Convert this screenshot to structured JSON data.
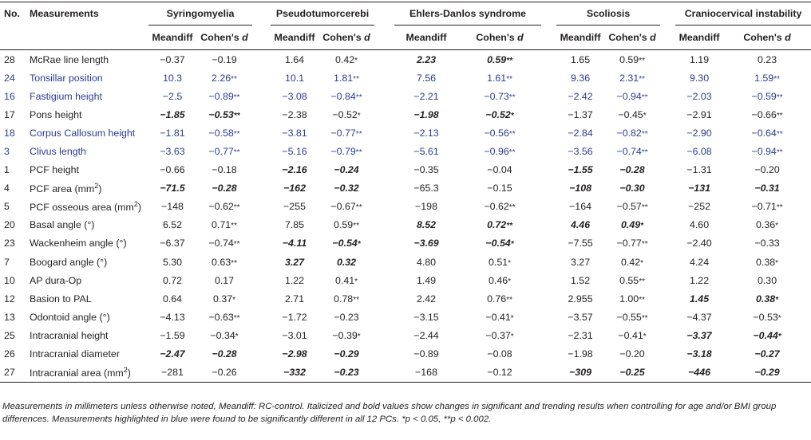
{
  "header": {
    "no": "No.",
    "measurements": "Measurements",
    "groups": [
      "Syringomyelia",
      "Pseudotumorcerebi",
      "Ehlers-Danlos syndrome",
      "Scoliosis",
      "Craniocervical instability"
    ],
    "meandiff": "Meandiff",
    "cohens": "Cohen's",
    "d": "d"
  },
  "rows": [
    {
      "no": "28",
      "label": "McRae line length",
      "sup": "",
      "blue": false,
      "cells": [
        {
          "v": "−0.37",
          "s": "",
          "b": false
        },
        {
          "v": "−0.19",
          "s": "",
          "b": false
        },
        {
          "v": "1.64",
          "s": "",
          "b": false
        },
        {
          "v": "0.42",
          "s": "*",
          "b": false
        },
        {
          "v": "2.23",
          "s": "",
          "b": true
        },
        {
          "v": "0.59",
          "s": "**",
          "b": true
        },
        {
          "v": "1.65",
          "s": "",
          "b": false
        },
        {
          "v": "0.59",
          "s": "**",
          "b": false
        },
        {
          "v": "1.19",
          "s": "",
          "b": false
        },
        {
          "v": "0.23",
          "s": "",
          "b": false
        }
      ]
    },
    {
      "no": "24",
      "label": "Tonsillar position",
      "sup": "",
      "blue": true,
      "cells": [
        {
          "v": "10.3",
          "s": "",
          "b": false
        },
        {
          "v": "2.26",
          "s": "**",
          "b": false
        },
        {
          "v": "10.1",
          "s": "",
          "b": false
        },
        {
          "v": "1.81",
          "s": "**",
          "b": false
        },
        {
          "v": "7.56",
          "s": "",
          "b": false
        },
        {
          "v": "1.61",
          "s": "**",
          "b": false
        },
        {
          "v": "9.36",
          "s": "",
          "b": false
        },
        {
          "v": "2.31",
          "s": "**",
          "b": false
        },
        {
          "v": "9.30",
          "s": "",
          "b": false
        },
        {
          "v": "1.59",
          "s": "**",
          "b": false
        }
      ]
    },
    {
      "no": "16",
      "label": "Fastigium height",
      "sup": "",
      "blue": true,
      "cells": [
        {
          "v": "−2.5",
          "s": "",
          "b": false
        },
        {
          "v": "−0.89",
          "s": "**",
          "b": false
        },
        {
          "v": "−3.08",
          "s": "",
          "b": false
        },
        {
          "v": "−0.84",
          "s": "**",
          "b": false
        },
        {
          "v": "−2.21",
          "s": "",
          "b": false
        },
        {
          "v": "−0.73",
          "s": "**",
          "b": false
        },
        {
          "v": "−2.42",
          "s": "",
          "b": false
        },
        {
          "v": "−0.94",
          "s": "**",
          "b": false
        },
        {
          "v": "−2.03",
          "s": "",
          "b": false
        },
        {
          "v": "−0.59",
          "s": "**",
          "b": false
        }
      ]
    },
    {
      "no": "17",
      "label": "Pons height",
      "sup": "",
      "blue": false,
      "cells": [
        {
          "v": "−1.85",
          "s": "",
          "b": true
        },
        {
          "v": "−0.53",
          "s": "**",
          "b": true
        },
        {
          "v": "−2.38",
          "s": "",
          "b": false
        },
        {
          "v": "−0.52",
          "s": "*",
          "b": false
        },
        {
          "v": "−1.98",
          "s": "",
          "b": true
        },
        {
          "v": "−0.52",
          "s": "*",
          "b": true
        },
        {
          "v": "−1.37",
          "s": "",
          "b": false
        },
        {
          "v": "−0.45",
          "s": "*",
          "b": false
        },
        {
          "v": "−2.91",
          "s": "",
          "b": false
        },
        {
          "v": "−0.66",
          "s": "**",
          "b": false
        }
      ]
    },
    {
      "no": "18",
      "label": "Corpus Callosum height",
      "sup": "",
      "blue": true,
      "cells": [
        {
          "v": "−1.81",
          "s": "",
          "b": false
        },
        {
          "v": "−0.58",
          "s": "**",
          "b": false
        },
        {
          "v": "−3.81",
          "s": "",
          "b": false
        },
        {
          "v": "−0.77",
          "s": "**",
          "b": false
        },
        {
          "v": "−2.13",
          "s": "",
          "b": false
        },
        {
          "v": "−0.56",
          "s": "**",
          "b": false
        },
        {
          "v": "−2.84",
          "s": "",
          "b": false
        },
        {
          "v": "−0.82",
          "s": "**",
          "b": false
        },
        {
          "v": "−2.90",
          "s": "",
          "b": false
        },
        {
          "v": "−0.64",
          "s": "**",
          "b": false
        }
      ]
    },
    {
      "no": "3",
      "label": "Clivus length",
      "sup": "",
      "blue": true,
      "cells": [
        {
          "v": "−3.63",
          "s": "",
          "b": false
        },
        {
          "v": "−0.77",
          "s": "**",
          "b": false
        },
        {
          "v": "−5.16",
          "s": "",
          "b": false
        },
        {
          "v": "−0.79",
          "s": "**",
          "b": false
        },
        {
          "v": "−5.61",
          "s": "",
          "b": false
        },
        {
          "v": "−0.96",
          "s": "**",
          "b": false
        },
        {
          "v": "−3.56",
          "s": "",
          "b": false
        },
        {
          "v": "−0.74",
          "s": "**",
          "b": false
        },
        {
          "v": "−6.08",
          "s": "",
          "b": false
        },
        {
          "v": "−0.94",
          "s": "**",
          "b": false
        }
      ]
    },
    {
      "no": "1",
      "label": "PCF height",
      "sup": "",
      "blue": false,
      "cells": [
        {
          "v": "−0.66",
          "s": "",
          "b": false
        },
        {
          "v": "−0.18",
          "s": "",
          "b": false
        },
        {
          "v": "−2.16",
          "s": "",
          "b": true
        },
        {
          "v": "−0.24",
          "s": "",
          "b": true
        },
        {
          "v": "−0.35",
          "s": "",
          "b": false
        },
        {
          "v": "−0.04",
          "s": "",
          "b": false
        },
        {
          "v": "−1.55",
          "s": "",
          "b": true
        },
        {
          "v": "−0.28",
          "s": "",
          "b": true
        },
        {
          "v": "−1.31",
          "s": "",
          "b": false
        },
        {
          "v": "−0.20",
          "s": "",
          "b": false
        }
      ]
    },
    {
      "no": "4",
      "label": "PCF area (mm",
      "sup": "2",
      "blue": false,
      "cells": [
        {
          "v": "−71.5",
          "s": "",
          "b": true
        },
        {
          "v": "−0.28",
          "s": "",
          "b": true
        },
        {
          "v": "−162",
          "s": "",
          "b": true
        },
        {
          "v": "−0.32",
          "s": "",
          "b": true
        },
        {
          "v": "−65.3",
          "s": "",
          "b": false
        },
        {
          "v": "−0.15",
          "s": "",
          "b": false
        },
        {
          "v": "−108",
          "s": "",
          "b": true
        },
        {
          "v": "−0.30",
          "s": "",
          "b": true
        },
        {
          "v": "−131",
          "s": "",
          "b": true
        },
        {
          "v": "−0.31",
          "s": "",
          "b": true
        }
      ]
    },
    {
      "no": "5",
      "label": "PCF osseous area (mm",
      "sup": "2",
      "blue": false,
      "cells": [
        {
          "v": "−148",
          "s": "",
          "b": false
        },
        {
          "v": "−0.62",
          "s": "**",
          "b": false
        },
        {
          "v": "−255",
          "s": "",
          "b": false
        },
        {
          "v": "−0.67",
          "s": "**",
          "b": false
        },
        {
          "v": "−198",
          "s": "",
          "b": false
        },
        {
          "v": "−0.62",
          "s": "**",
          "b": false
        },
        {
          "v": "−164",
          "s": "",
          "b": false
        },
        {
          "v": "−0.57",
          "s": "**",
          "b": false
        },
        {
          "v": "−252",
          "s": "",
          "b": false
        },
        {
          "v": "−0.71",
          "s": "**",
          "b": false
        }
      ]
    },
    {
      "no": "20",
      "label": "Basal angle (°)",
      "sup": "",
      "blue": false,
      "cells": [
        {
          "v": "6.52",
          "s": "",
          "b": false
        },
        {
          "v": "0.71",
          "s": "**",
          "b": false
        },
        {
          "v": "7.85",
          "s": "",
          "b": false
        },
        {
          "v": "0.59",
          "s": "**",
          "b": false
        },
        {
          "v": "8.52",
          "s": "",
          "b": true
        },
        {
          "v": "0.72",
          "s": "**",
          "b": true
        },
        {
          "v": "4.46",
          "s": "",
          "b": true
        },
        {
          "v": "0.49",
          "s": "*",
          "b": true
        },
        {
          "v": "4.60",
          "s": "",
          "b": false
        },
        {
          "v": "0.36",
          "s": "*",
          "b": false
        }
      ]
    },
    {
      "no": "23",
      "label": "Wackenheim angle (°)",
      "sup": "",
      "blue": false,
      "cells": [
        {
          "v": "−6.37",
          "s": "",
          "b": false
        },
        {
          "v": "−0.74",
          "s": "**",
          "b": false
        },
        {
          "v": "−4.11",
          "s": "",
          "b": true
        },
        {
          "v": "−0.54",
          "s": "*",
          "b": true
        },
        {
          "v": "−3.69",
          "s": "",
          "b": true
        },
        {
          "v": "−0.54",
          "s": "*",
          "b": true
        },
        {
          "v": "−7.55",
          "s": "",
          "b": false
        },
        {
          "v": "−0.77",
          "s": "**",
          "b": false
        },
        {
          "v": "−2.40",
          "s": "",
          "b": false
        },
        {
          "v": "−0.33",
          "s": "",
          "b": false
        }
      ]
    },
    {
      "no": "7",
      "label": "Boogard angle (°)",
      "sup": "",
      "blue": false,
      "cells": [
        {
          "v": "5.30",
          "s": "",
          "b": false
        },
        {
          "v": "0.63",
          "s": "**",
          "b": false
        },
        {
          "v": "3.27",
          "s": "",
          "b": true
        },
        {
          "v": "0.32",
          "s": "",
          "b": true
        },
        {
          "v": "4.80",
          "s": "",
          "b": false
        },
        {
          "v": "0.51",
          "s": "*",
          "b": false
        },
        {
          "v": "3.27",
          "s": "",
          "b": false
        },
        {
          "v": "0.42",
          "s": "*",
          "b": false
        },
        {
          "v": "4.24",
          "s": "",
          "b": false
        },
        {
          "v": "0.38",
          "s": "*",
          "b": false
        }
      ]
    },
    {
      "no": "10",
      "label": "AP dura-Op",
      "sup": "",
      "blue": false,
      "cells": [
        {
          "v": "0.72",
          "s": "",
          "b": false
        },
        {
          "v": "0.17",
          "s": "",
          "b": false
        },
        {
          "v": "1.22",
          "s": "",
          "b": false
        },
        {
          "v": "0.41",
          "s": "*",
          "b": false
        },
        {
          "v": "1.49",
          "s": "",
          "b": false
        },
        {
          "v": "0.46",
          "s": "*",
          "b": false
        },
        {
          "v": "1.52",
          "s": "",
          "b": false
        },
        {
          "v": "0.55",
          "s": "**",
          "b": false
        },
        {
          "v": "1.22",
          "s": "",
          "b": false
        },
        {
          "v": "0.30",
          "s": "",
          "b": false
        }
      ]
    },
    {
      "no": "12",
      "label": "Basion to PAL",
      "sup": "",
      "blue": false,
      "cells": [
        {
          "v": "0.64",
          "s": "",
          "b": false
        },
        {
          "v": "0.37",
          "s": "*",
          "b": false
        },
        {
          "v": "2.71",
          "s": "",
          "b": false
        },
        {
          "v": "0.78",
          "s": "**",
          "b": false
        },
        {
          "v": "2.42",
          "s": "",
          "b": false
        },
        {
          "v": "0.76",
          "s": "**",
          "b": false
        },
        {
          "v": "2.955",
          "s": "",
          "b": false
        },
        {
          "v": "1.00",
          "s": "**",
          "b": false
        },
        {
          "v": "1.45",
          "s": "",
          "b": true
        },
        {
          "v": "0.38",
          "s": "*",
          "b": true
        }
      ]
    },
    {
      "no": "13",
      "label": "Odontoid angle (°)",
      "sup": "",
      "blue": false,
      "cells": [
        {
          "v": "−4.13",
          "s": "",
          "b": false
        },
        {
          "v": "−0.63",
          "s": "**",
          "b": false
        },
        {
          "v": "−1.72",
          "s": "",
          "b": false
        },
        {
          "v": "−0.23",
          "s": "",
          "b": false
        },
        {
          "v": "−3.15",
          "s": "",
          "b": false
        },
        {
          "v": "−0.41",
          "s": "*",
          "b": false
        },
        {
          "v": "−3.57",
          "s": "",
          "b": false
        },
        {
          "v": "−0.55",
          "s": "**",
          "b": false
        },
        {
          "v": "−4.37",
          "s": "",
          "b": false
        },
        {
          "v": "−0.53",
          "s": "*",
          "b": false
        }
      ]
    },
    {
      "no": "25",
      "label": "Intracranial height",
      "sup": "",
      "blue": false,
      "cells": [
        {
          "v": "−1.59",
          "s": "",
          "b": false
        },
        {
          "v": "−0.34",
          "s": "*",
          "b": false
        },
        {
          "v": "−3.01",
          "s": "",
          "b": false
        },
        {
          "v": "−0.39",
          "s": "*",
          "b": false
        },
        {
          "v": "−2.44",
          "s": "",
          "b": false
        },
        {
          "v": "−0.37",
          "s": "*",
          "b": false
        },
        {
          "v": "−2.31",
          "s": "",
          "b": false
        },
        {
          "v": "−0.41",
          "s": "*",
          "b": false
        },
        {
          "v": "−3.37",
          "s": "",
          "b": true
        },
        {
          "v": "−0.44",
          "s": "*",
          "b": true
        }
      ]
    },
    {
      "no": "26",
      "label": "Intracranial diameter",
      "sup": "",
      "blue": false,
      "cells": [
        {
          "v": "−2.47",
          "s": "",
          "b": true
        },
        {
          "v": "−0.28",
          "s": "",
          "b": true
        },
        {
          "v": "−2.98",
          "s": "",
          "b": true
        },
        {
          "v": "−0.29",
          "s": "",
          "b": true
        },
        {
          "v": "−0.89",
          "s": "",
          "b": false
        },
        {
          "v": "−0.08",
          "s": "",
          "b": false
        },
        {
          "v": "−1.98",
          "s": "",
          "b": false
        },
        {
          "v": "−0.20",
          "s": "",
          "b": false
        },
        {
          "v": "−3.18",
          "s": "",
          "b": true
        },
        {
          "v": "−0.27",
          "s": "",
          "b": true
        }
      ]
    },
    {
      "no": "27",
      "label": "Intracranial area (mm",
      "sup": "2",
      "blue": false,
      "cells": [
        {
          "v": "−281",
          "s": "",
          "b": false
        },
        {
          "v": "−0.26",
          "s": "",
          "b": false
        },
        {
          "v": "−332",
          "s": "",
          "b": true
        },
        {
          "v": "−0.23",
          "s": "",
          "b": true
        },
        {
          "v": "−168",
          "s": "",
          "b": false
        },
        {
          "v": "−0.12",
          "s": "",
          "b": false
        },
        {
          "v": "−309",
          "s": "",
          "b": true
        },
        {
          "v": "−0.25",
          "s": "",
          "b": true
        },
        {
          "v": "−446",
          "s": "",
          "b": true
        },
        {
          "v": "−0.29",
          "s": "",
          "b": true
        }
      ]
    }
  ],
  "footnote": {
    "text": "Measurements in millimeters unless otherwise noted, Meandiff: RC-control. Italicized and bold values show changes in significant and trending results when controlling for age and/or BMI group differences. Measurements highlighted in blue were found to be significantly different in all 12 PCs.",
    "p1": "*p < 0.05, **p < 0.002."
  }
}
